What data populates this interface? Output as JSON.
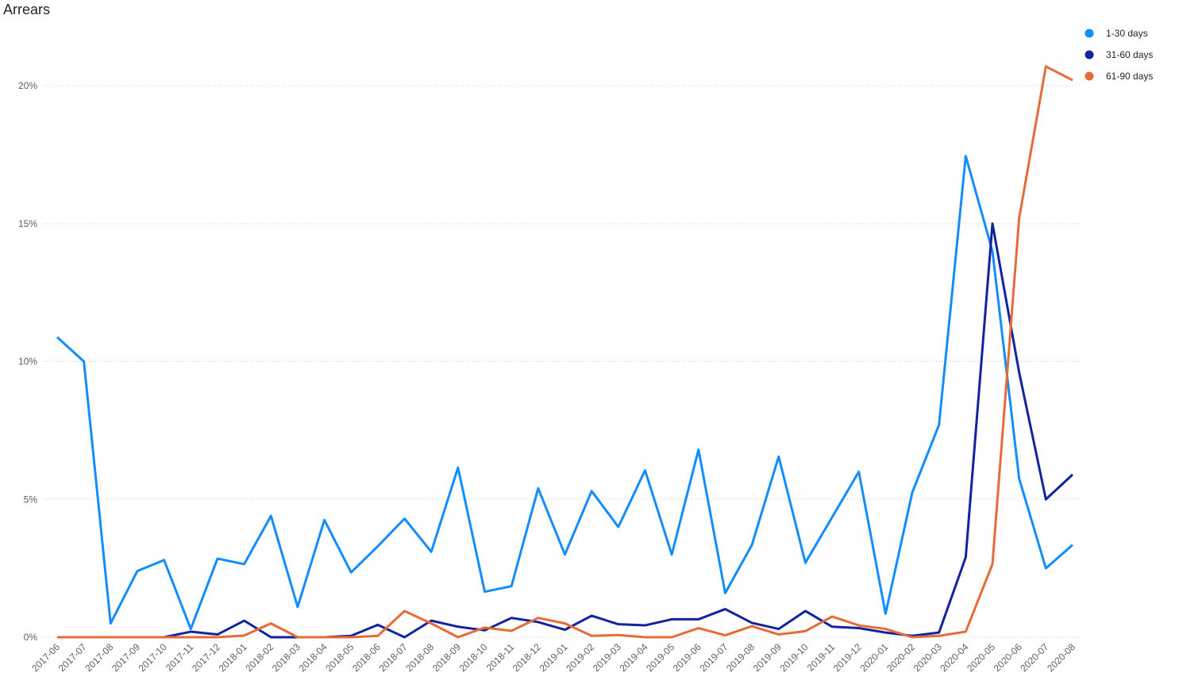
{
  "chart_data": {
    "type": "line",
    "title": "Arrears",
    "categories": [
      "2017-06",
      "2017-07",
      "2017-08",
      "2017-09",
      "2017-10",
      "2017-11",
      "2017-12",
      "2018-01",
      "2018-02",
      "2018-03",
      "2018-04",
      "2018-05",
      "2018-06",
      "2018-07",
      "2018-08",
      "2018-09",
      "2018-10",
      "2018-11",
      "2018-12",
      "2019-01",
      "2019-02",
      "2019-03",
      "2019-04",
      "2019-05",
      "2019-06",
      "2019-07",
      "2019-08",
      "2019-09",
      "2019-10",
      "2019-11",
      "2019-12",
      "2020-01",
      "2020-02",
      "2020-03",
      "2020-04",
      "2020-05",
      "2020-06",
      "2020-07",
      "2020-08"
    ],
    "series": [
      {
        "name": "1-30 days",
        "color": "#118dff",
        "values": [
          10.88,
          10.0,
          0.5,
          2.4,
          2.8,
          0.3,
          2.85,
          2.65,
          4.4,
          1.1,
          4.25,
          2.35,
          3.3,
          4.3,
          3.1,
          6.15,
          1.65,
          1.85,
          5.4,
          3.0,
          5.3,
          4.0,
          6.05,
          3.0,
          6.8,
          1.6,
          3.35,
          6.55,
          2.7,
          4.35,
          6.0,
          0.85,
          5.25,
          7.7,
          17.45,
          14.0,
          5.75,
          2.5,
          3.35
        ]
      },
      {
        "name": "31-60 days",
        "color": "#12239e",
        "values": [
          0,
          0,
          0,
          0,
          0,
          0.2,
          0.1,
          0.6,
          0,
          0,
          0,
          0.05,
          0.45,
          0,
          0.6,
          0.38,
          0.25,
          0.7,
          0.55,
          0.27,
          0.78,
          0.47,
          0.43,
          0.65,
          0.65,
          1.02,
          0.52,
          0.3,
          0.95,
          0.38,
          0.33,
          0.17,
          0.05,
          0.17,
          2.9,
          15.0,
          9.6,
          5.0,
          5.9
        ]
      },
      {
        "name": "61-90 days",
        "color": "#e66c37",
        "values": [
          0,
          0,
          0,
          0,
          0,
          0,
          0,
          0.06,
          0.5,
          0,
          0,
          0,
          0.05,
          0.95,
          0.5,
          0,
          0.35,
          0.23,
          0.7,
          0.5,
          0.05,
          0.08,
          0,
          0,
          0.33,
          0.07,
          0.4,
          0.1,
          0.22,
          0.75,
          0.43,
          0.3,
          0,
          0.05,
          0.2,
          2.65,
          15.2,
          20.7,
          20.2
        ]
      }
    ],
    "ylim": [
      0,
      22
    ],
    "yticks": [
      {
        "value": 0,
        "label": "0%"
      },
      {
        "value": 5,
        "label": "5%"
      },
      {
        "value": 10,
        "label": "10%"
      },
      {
        "value": 15,
        "label": "15%"
      },
      {
        "value": 20,
        "label": "20%"
      }
    ],
    "grid": true,
    "legend": "top-right"
  }
}
